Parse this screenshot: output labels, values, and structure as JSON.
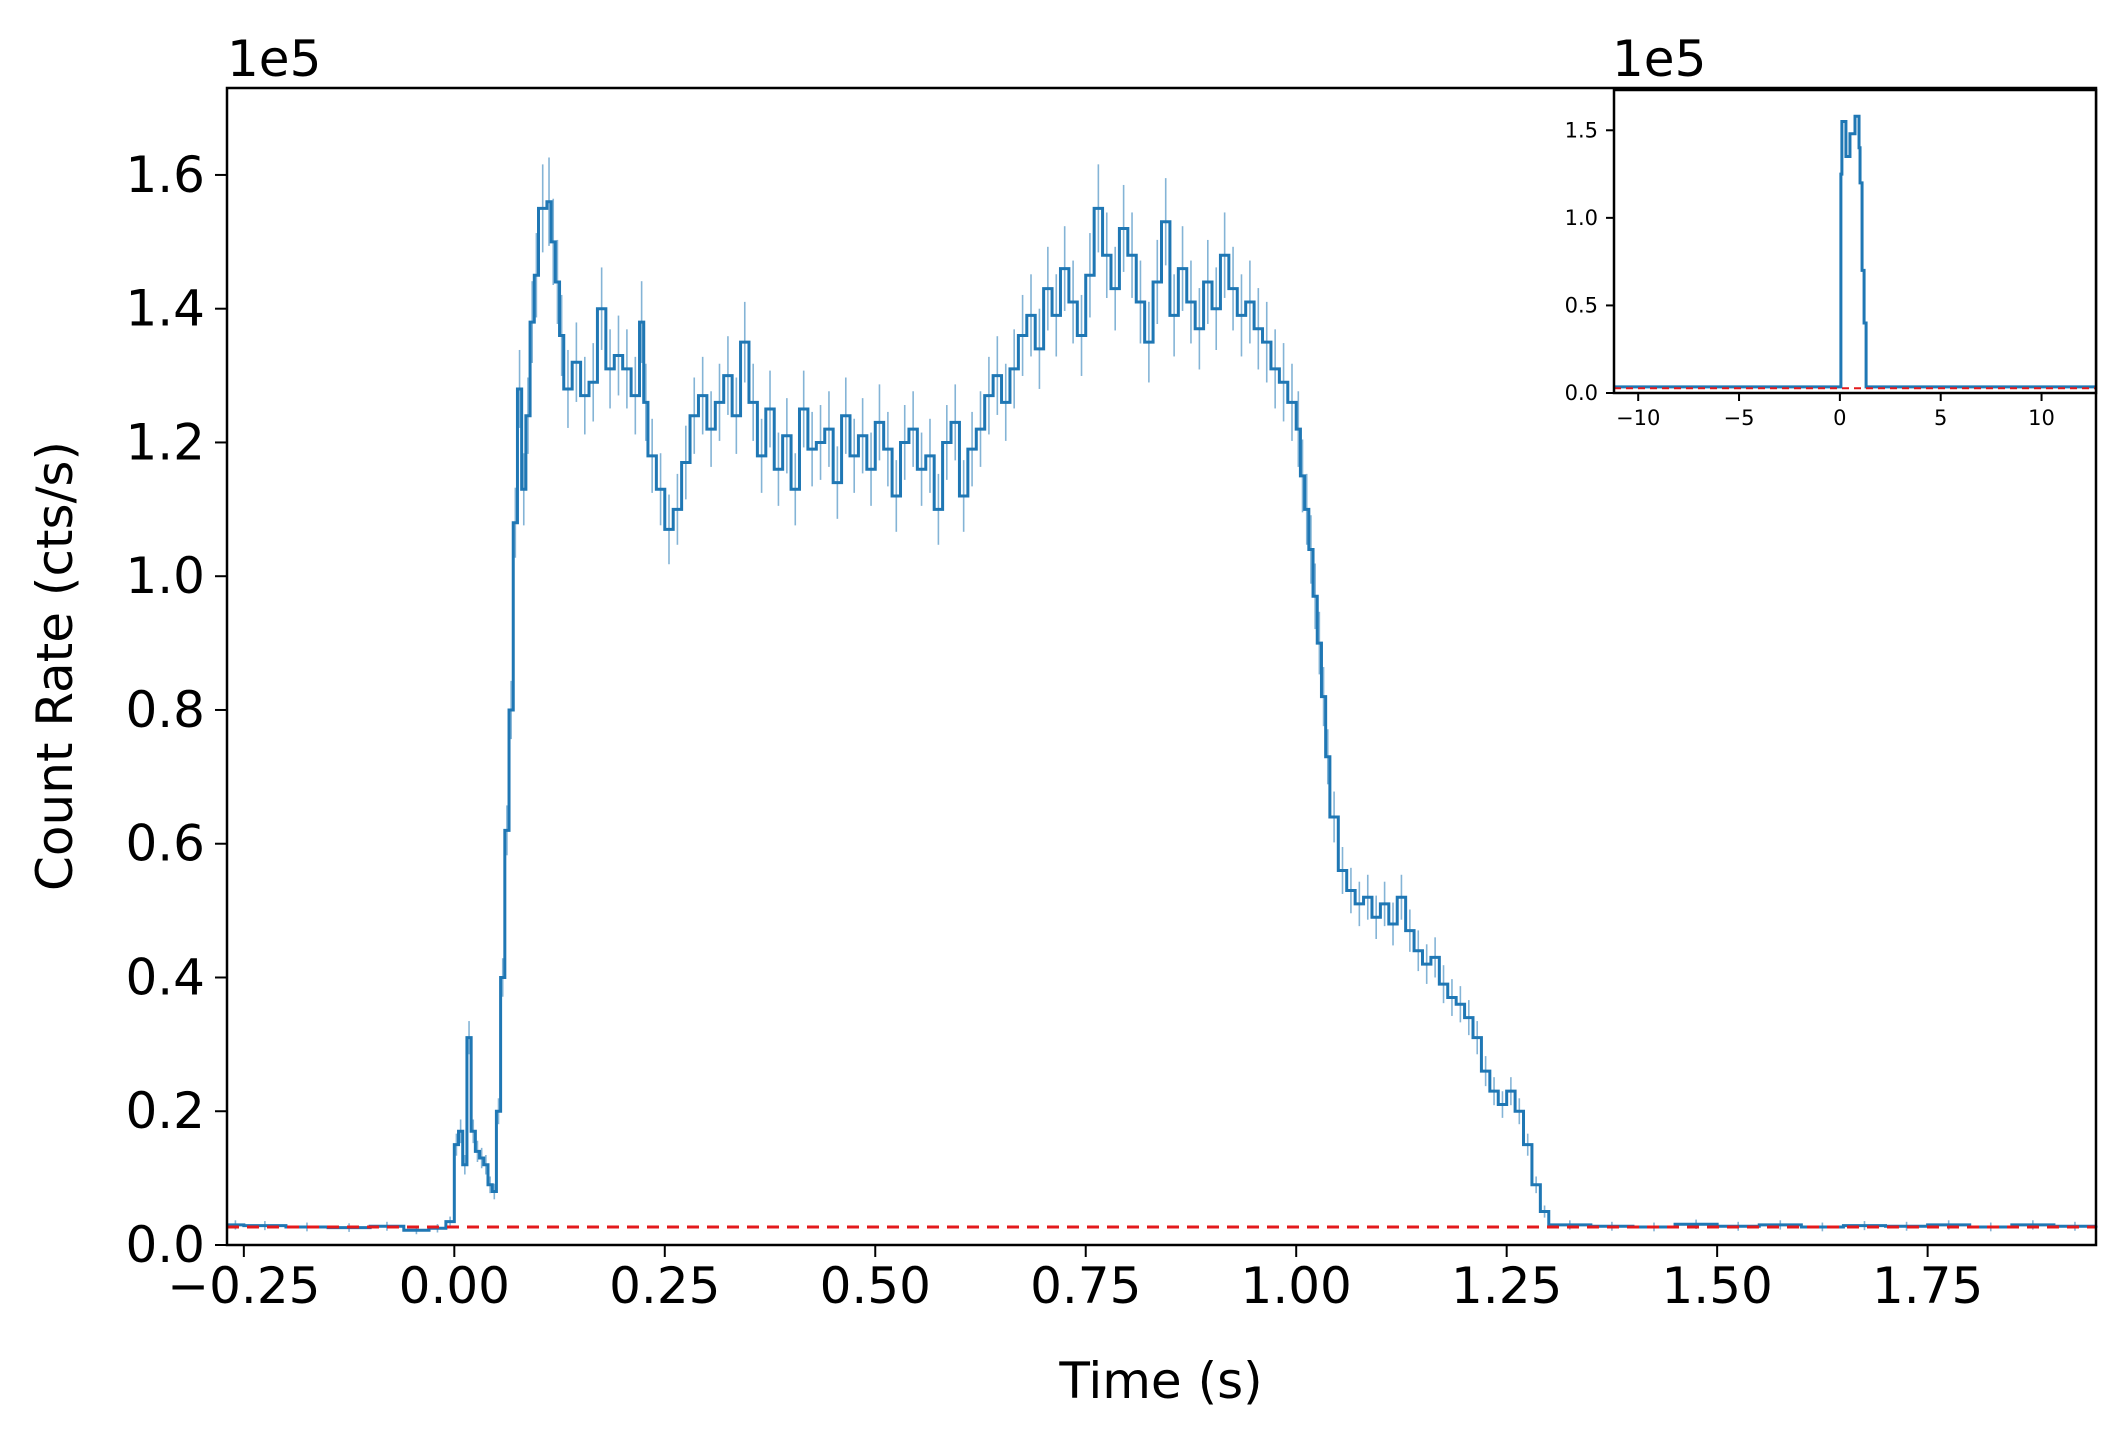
{
  "chart_data": [
    {
      "type": "line",
      "panel": "main",
      "xlabel": "Time (s)",
      "ylabel": "Count Rate (cts/s)",
      "y_offset_label": "1e5",
      "xlim": [
        -0.27,
        1.95
      ],
      "ylim": [
        0,
        173000
      ],
      "x_ticks": [
        -0.25,
        0.0,
        0.25,
        0.5,
        0.75,
        1.0,
        1.25,
        1.5,
        1.75
      ],
      "x_tick_labels": [
        "−0.25",
        "0.00",
        "0.25",
        "0.50",
        "0.75",
        "1.00",
        "1.25",
        "1.50",
        "1.75"
      ],
      "y_ticks": [
        0,
        20000,
        40000,
        60000,
        80000,
        100000,
        120000,
        140000,
        160000
      ],
      "y_tick_labels": [
        "0.0",
        "0.2",
        "0.4",
        "0.6",
        "0.8",
        "1.0",
        "1.2",
        "1.4",
        "1.6"
      ],
      "grid": false,
      "series": [
        {
          "style": "step",
          "color": "#1f77b4",
          "error_bars": true,
          "points": [
            [
              -0.27,
              3000
            ],
            [
              -0.25,
              2900
            ],
            [
              -0.2,
              2700
            ],
            [
              -0.15,
              2600
            ],
            [
              -0.1,
              2800
            ],
            [
              -0.06,
              2200
            ],
            [
              -0.03,
              2500
            ],
            [
              -0.01,
              3500
            ],
            [
              0.0,
              15000
            ],
            [
              0.005,
              17000
            ],
            [
              0.01,
              12000
            ],
            [
              0.015,
              31000
            ],
            [
              0.02,
              17000
            ],
            [
              0.025,
              14000
            ],
            [
              0.03,
              13000
            ],
            [
              0.035,
              12000
            ],
            [
              0.04,
              9000
            ],
            [
              0.045,
              8000
            ],
            [
              0.05,
              20000
            ],
            [
              0.055,
              40000
            ],
            [
              0.06,
              62000
            ],
            [
              0.065,
              80000
            ],
            [
              0.07,
              108000
            ],
            [
              0.075,
              128000
            ],
            [
              0.08,
              113000
            ],
            [
              0.085,
              124000
            ],
            [
              0.09,
              138000
            ],
            [
              0.095,
              145000
            ],
            [
              0.1,
              155000
            ],
            [
              0.11,
              156000
            ],
            [
              0.115,
              150000
            ],
            [
              0.12,
              144000
            ],
            [
              0.125,
              136000
            ],
            [
              0.13,
              128000
            ],
            [
              0.14,
              132000
            ],
            [
              0.15,
              127000
            ],
            [
              0.16,
              129000
            ],
            [
              0.17,
              140000
            ],
            [
              0.18,
              131000
            ],
            [
              0.19,
              133000
            ],
            [
              0.2,
              131000
            ],
            [
              0.21,
              127000
            ],
            [
              0.22,
              138000
            ],
            [
              0.225,
              126000
            ],
            [
              0.23,
              118000
            ],
            [
              0.24,
              113000
            ],
            [
              0.25,
              107000
            ],
            [
              0.26,
              110000
            ],
            [
              0.27,
              117000
            ],
            [
              0.28,
              124000
            ],
            [
              0.29,
              127000
            ],
            [
              0.3,
              122000
            ],
            [
              0.31,
              126000
            ],
            [
              0.32,
              130000
            ],
            [
              0.33,
              124000
            ],
            [
              0.34,
              135000
            ],
            [
              0.35,
              126000
            ],
            [
              0.36,
              118000
            ],
            [
              0.37,
              125000
            ],
            [
              0.38,
              116000
            ],
            [
              0.39,
              121000
            ],
            [
              0.4,
              113000
            ],
            [
              0.41,
              125000
            ],
            [
              0.42,
              119000
            ],
            [
              0.43,
              120000
            ],
            [
              0.44,
              122000
            ],
            [
              0.45,
              114000
            ],
            [
              0.46,
              124000
            ],
            [
              0.47,
              118000
            ],
            [
              0.48,
              121000
            ],
            [
              0.49,
              116000
            ],
            [
              0.5,
              123000
            ],
            [
              0.51,
              119000
            ],
            [
              0.52,
              112000
            ],
            [
              0.53,
              120000
            ],
            [
              0.54,
              122000
            ],
            [
              0.55,
              116000
            ],
            [
              0.56,
              118000
            ],
            [
              0.57,
              110000
            ],
            [
              0.58,
              120000
            ],
            [
              0.59,
              123000
            ],
            [
              0.6,
              112000
            ],
            [
              0.61,
              119000
            ],
            [
              0.62,
              122000
            ],
            [
              0.63,
              127000
            ],
            [
              0.64,
              130000
            ],
            [
              0.65,
              126000
            ],
            [
              0.66,
              131000
            ],
            [
              0.67,
              136000
            ],
            [
              0.68,
              139000
            ],
            [
              0.69,
              134000
            ],
            [
              0.7,
              143000
            ],
            [
              0.71,
              139000
            ],
            [
              0.72,
              146000
            ],
            [
              0.73,
              141000
            ],
            [
              0.74,
              136000
            ],
            [
              0.75,
              145000
            ],
            [
              0.76,
              155000
            ],
            [
              0.77,
              148000
            ],
            [
              0.78,
              143000
            ],
            [
              0.79,
              152000
            ],
            [
              0.8,
              148000
            ],
            [
              0.81,
              141000
            ],
            [
              0.82,
              135000
            ],
            [
              0.83,
              144000
            ],
            [
              0.84,
              153000
            ],
            [
              0.85,
              139000
            ],
            [
              0.86,
              146000
            ],
            [
              0.87,
              141000
            ],
            [
              0.88,
              137000
            ],
            [
              0.89,
              144000
            ],
            [
              0.9,
              140000
            ],
            [
              0.91,
              148000
            ],
            [
              0.92,
              143000
            ],
            [
              0.93,
              139000
            ],
            [
              0.94,
              141000
            ],
            [
              0.95,
              137000
            ],
            [
              0.96,
              135000
            ],
            [
              0.97,
              131000
            ],
            [
              0.98,
              129000
            ],
            [
              0.99,
              126000
            ],
            [
              1.0,
              122000
            ],
            [
              1.005,
              115000
            ],
            [
              1.01,
              110000
            ],
            [
              1.015,
              104000
            ],
            [
              1.02,
              97000
            ],
            [
              1.025,
              90000
            ],
            [
              1.03,
              82000
            ],
            [
              1.035,
              73000
            ],
            [
              1.04,
              64000
            ],
            [
              1.05,
              56000
            ],
            [
              1.06,
              53000
            ],
            [
              1.07,
              51000
            ],
            [
              1.08,
              52000
            ],
            [
              1.09,
              49000
            ],
            [
              1.1,
              51000
            ],
            [
              1.11,
              48000
            ],
            [
              1.12,
              52000
            ],
            [
              1.13,
              47000
            ],
            [
              1.14,
              44000
            ],
            [
              1.15,
              42000
            ],
            [
              1.16,
              43000
            ],
            [
              1.17,
              39000
            ],
            [
              1.18,
              37000
            ],
            [
              1.19,
              36000
            ],
            [
              1.2,
              34000
            ],
            [
              1.21,
              31000
            ],
            [
              1.22,
              26000
            ],
            [
              1.23,
              23000
            ],
            [
              1.24,
              21000
            ],
            [
              1.25,
              23000
            ],
            [
              1.26,
              20000
            ],
            [
              1.27,
              15000
            ],
            [
              1.28,
              9000
            ],
            [
              1.29,
              5000
            ],
            [
              1.3,
              3000
            ],
            [
              1.35,
              2800
            ],
            [
              1.4,
              2700
            ],
            [
              1.45,
              3100
            ],
            [
              1.5,
              2800
            ],
            [
              1.55,
              3000
            ],
            [
              1.6,
              2700
            ],
            [
              1.65,
              2900
            ],
            [
              1.7,
              2800
            ],
            [
              1.75,
              3000
            ],
            [
              1.8,
              2700
            ],
            [
              1.85,
              3000
            ],
            [
              1.9,
              2800
            ],
            [
              1.95,
              2900
            ]
          ]
        },
        {
          "style": "dashed",
          "color": "#e31a1c",
          "points": [
            [
              -0.27,
              2700
            ],
            [
              1.95,
              2700
            ]
          ]
        }
      ]
    },
    {
      "type": "line",
      "panel": "inset",
      "y_offset_label": "1e5",
      "xlim": [
        -11.2,
        12.7
      ],
      "ylim": [
        0,
        173000
      ],
      "x_ticks": [
        -10,
        -5,
        0,
        5,
        10
      ],
      "x_tick_labels": [
        "−10",
        "−5",
        "0",
        "5",
        "10"
      ],
      "y_ticks": [
        0,
        50000,
        100000,
        150000
      ],
      "y_tick_labels": [
        "0.0",
        "0.5",
        "1.0",
        "1.5"
      ],
      "grid": false,
      "series": [
        {
          "style": "step",
          "color": "#1f77b4",
          "points": [
            [
              -11.2,
              3500
            ],
            [
              0.0,
              3500
            ],
            [
              0.05,
              125000
            ],
            [
              0.1,
              155000
            ],
            [
              0.3,
              135000
            ],
            [
              0.5,
              148000
            ],
            [
              0.75,
              158000
            ],
            [
              0.95,
              140000
            ],
            [
              1.0,
              120000
            ],
            [
              1.1,
              70000
            ],
            [
              1.2,
              40000
            ],
            [
              1.3,
              3500
            ],
            [
              12.7,
              3500
            ]
          ]
        },
        {
          "style": "dashed",
          "color": "#e31a1c",
          "points": [
            [
              -11.2,
              2700
            ],
            [
              12.7,
              2700
            ]
          ]
        }
      ]
    }
  ]
}
